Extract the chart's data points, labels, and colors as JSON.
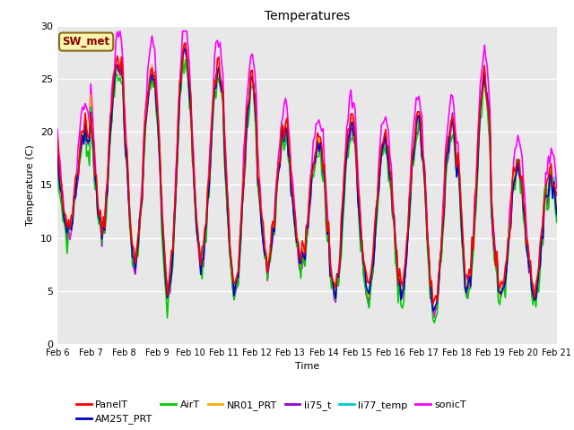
{
  "title": "Temperatures",
  "xlabel": "Time",
  "ylabel": "Temperature (C)",
  "ylim": [
    0,
    30
  ],
  "background_color": "#e8e8e8",
  "annotation_text": "SW_met",
  "annotation_color": "#8b0000",
  "annotation_bg": "#f5f5b0",
  "annotation_border": "#8b6914",
  "xtick_labels": [
    "Feb 6",
    "Feb 7",
    "Feb 8",
    "Feb 9",
    "Feb 10",
    "Feb 11",
    "Feb 12",
    "Feb 13",
    "Feb 14",
    "Feb 15",
    "Feb 16",
    "Feb 17",
    "Feb 18",
    "Feb 19",
    "Feb 20",
    "Feb 21"
  ],
  "yticks": [
    0,
    5,
    10,
    15,
    20,
    25,
    30
  ],
  "series": {
    "PanelT": {
      "color": "#ff0000",
      "lw": 1.2
    },
    "AM25T_PRT": {
      "color": "#0000cc",
      "lw": 1.2
    },
    "AirT": {
      "color": "#00cc00",
      "lw": 1.2
    },
    "NR01_PRT": {
      "color": "#ffaa00",
      "lw": 1.2
    },
    "li75_t": {
      "color": "#9900cc",
      "lw": 1.2
    },
    "li77_temp": {
      "color": "#00cccc",
      "lw": 1.2
    },
    "sonicT": {
      "color": "#ff00ff",
      "lw": 1.2
    }
  },
  "legend_order": [
    "PanelT",
    "AM25T_PRT",
    "AirT",
    "NR01_PRT",
    "li75_t",
    "li77_temp",
    "sonicT"
  ],
  "legend_row1": [
    "PanelT",
    "AM25T_PRT",
    "AirT",
    "NR01_PRT",
    "li75_t",
    "li77_temp"
  ],
  "legend_row2": [
    "sonicT"
  ]
}
